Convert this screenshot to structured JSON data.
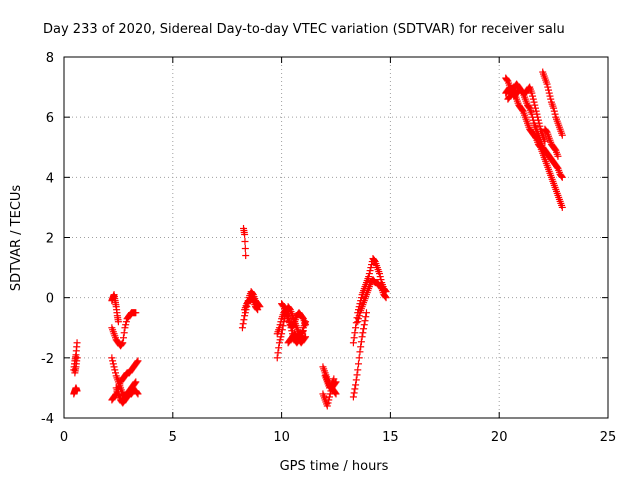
{
  "chart_data": {
    "type": "scatter",
    "title": "Day 233 of 2020, Sidereal Day-to-day VTEC variation (SDTVAR) for receiver salu",
    "xlabel": "GPS time / hours",
    "ylabel": "SDTVAR / TECUs",
    "xlim": [
      0,
      25
    ],
    "ylim": [
      -4,
      8
    ],
    "xticks": [
      0,
      5,
      10,
      15,
      20,
      25
    ],
    "yticks": [
      -4,
      -2,
      0,
      2,
      4,
      6,
      8
    ],
    "grid": true,
    "marker": "+",
    "color": "#ff0000",
    "series": [
      {
        "name": "SDTVAR",
        "segments": [
          {
            "x": [
              0.45,
              0.5,
              0.55,
              0.6
            ],
            "y": [
              -2.4,
              -2.1,
              -1.9,
              -1.5
            ]
          },
          {
            "x": [
              0.45,
              0.5,
              0.55,
              0.6
            ],
            "y": [
              -3.2,
              -3.1,
              -3.0,
              -3.1
            ]
          },
          {
            "x": [
              0.5,
              0.55,
              0.6
            ],
            "y": [
              -2.5,
              -2.3,
              -2.0
            ]
          },
          {
            "x": [
              2.2,
              2.3,
              2.4,
              2.5,
              2.6,
              2.7,
              2.8,
              2.9,
              3.0,
              3.1,
              3.2,
              3.3
            ],
            "y": [
              -1.0,
              -1.2,
              -1.4,
              -1.5,
              -1.6,
              -1.5,
              -1.0,
              -0.7,
              -0.6,
              -0.5,
              -0.5,
              -0.5
            ]
          },
          {
            "x": [
              2.2,
              2.25,
              2.3,
              2.35,
              2.4,
              2.45,
              2.5
            ],
            "y": [
              -0.1,
              0.0,
              0.1,
              -0.1,
              -0.3,
              -0.6,
              -0.8
            ]
          },
          {
            "x": [
              2.2,
              2.3,
              2.4,
              2.5,
              2.6,
              2.7,
              2.8,
              2.9,
              3.0,
              3.1,
              3.2,
              3.3
            ],
            "y": [
              -2.0,
              -2.3,
              -2.6,
              -2.8,
              -3.0,
              -3.2,
              -3.3,
              -3.2,
              -3.1,
              -3.0,
              -2.9,
              -2.8
            ]
          },
          {
            "x": [
              2.2,
              2.3,
              2.4,
              2.5,
              2.6,
              2.7,
              2.8,
              2.9,
              3.0,
              3.1,
              3.2,
              3.3,
              3.4
            ],
            "y": [
              -3.4,
              -3.3,
              -3.2,
              -3.0,
              -2.8,
              -2.7,
              -2.6,
              -2.5,
              -2.5,
              -2.4,
              -2.3,
              -2.2,
              -2.1
            ]
          },
          {
            "x": [
              2.4,
              2.5,
              2.6,
              2.7,
              2.8,
              2.9,
              3.0,
              3.1,
              3.2,
              3.3,
              3.4
            ],
            "y": [
              -3.0,
              -3.2,
              -3.4,
              -3.5,
              -3.4,
              -3.3,
              -3.2,
              -3.2,
              -3.1,
              -3.1,
              -3.2
            ]
          },
          {
            "x": [
              8.25,
              8.3,
              8.35
            ],
            "y": [
              2.3,
              2.1,
              1.4
            ]
          },
          {
            "x": [
              8.2,
              8.3,
              8.4,
              8.5,
              8.6,
              8.7,
              8.8,
              8.9,
              9.0
            ],
            "y": [
              -1.0,
              -0.6,
              -0.3,
              0.0,
              0.2,
              0.1,
              -0.1,
              -0.2,
              -0.3
            ]
          },
          {
            "x": [
              8.3,
              8.4,
              8.5,
              8.6,
              8.7,
              8.8,
              8.9
            ],
            "y": [
              -0.4,
              -0.2,
              -0.1,
              0.0,
              -0.1,
              -0.3,
              -0.4
            ]
          },
          {
            "x": [
              9.8,
              9.9,
              10.0,
              10.1,
              10.2,
              10.3,
              10.4,
              10.5,
              10.6,
              10.7,
              10.8,
              10.9,
              11.0,
              11.1
            ],
            "y": [
              -2.0,
              -1.5,
              -1.2,
              -0.8,
              -0.5,
              -0.3,
              -0.4,
              -0.6,
              -0.8,
              -1.0,
              -1.2,
              -1.3,
              -1.0,
              -0.8
            ]
          },
          {
            "x": [
              9.8,
              9.9,
              10.0,
              10.1,
              10.2,
              10.3,
              10.4,
              10.5,
              10.6,
              10.7,
              10.8,
              10.9,
              11.0
            ],
            "y": [
              -1.2,
              -1.0,
              -0.7,
              -0.5,
              -0.4,
              -0.6,
              -0.9,
              -1.2,
              -1.4,
              -1.5,
              -1.4,
              -1.2,
              -1.1
            ]
          },
          {
            "x": [
              10.0,
              10.1,
              10.2,
              10.3,
              10.4,
              10.5,
              10.6,
              10.7,
              10.8,
              10.9,
              11.0,
              11.1
            ],
            "y": [
              -0.2,
              -0.3,
              -0.5,
              -0.7,
              -0.9,
              -1.0,
              -0.8,
              -0.6,
              -0.5,
              -0.6,
              -0.7,
              -0.9
            ]
          },
          {
            "x": [
              10.3,
              10.4,
              10.5,
              10.6,
              10.7,
              10.8,
              10.9,
              11.0,
              11.1
            ],
            "y": [
              -1.5,
              -1.4,
              -1.3,
              -1.2,
              -1.3,
              -1.4,
              -1.5,
              -1.4,
              -1.3
            ]
          },
          {
            "x": [
              11.9,
              12.0,
              12.1,
              12.2,
              12.3,
              12.4,
              12.5
            ],
            "y": [
              -2.3,
              -2.5,
              -2.7,
              -2.9,
              -3.0,
              -2.9,
              -2.8
            ]
          },
          {
            "x": [
              11.9,
              12.0,
              12.1,
              12.2,
              12.3,
              12.4,
              12.5
            ],
            "y": [
              -3.2,
              -3.4,
              -3.6,
              -3.3,
              -3.0,
              -3.1,
              -3.2
            ]
          },
          {
            "x": [
              12.0,
              12.1,
              12.2,
              12.3,
              12.4
            ],
            "y": [
              -2.6,
              -2.8,
              -3.0,
              -2.9,
              -2.7
            ]
          },
          {
            "x": [
              13.3,
              13.4,
              13.5,
              13.6,
              13.7,
              13.8,
              13.9
            ],
            "y": [
              -3.3,
              -2.9,
              -2.4,
              -1.8,
              -1.3,
              -0.9,
              -0.5
            ]
          },
          {
            "x": [
              13.3,
              13.4,
              13.5,
              13.6,
              13.7,
              13.8,
              13.9,
              14.0,
              14.1,
              14.2,
              14.3,
              14.4,
              14.5,
              14.6,
              14.7,
              14.8
            ],
            "y": [
              -1.5,
              -1.0,
              -0.5,
              -0.2,
              0.1,
              0.3,
              0.5,
              0.7,
              1.0,
              1.3,
              1.2,
              1.0,
              0.8,
              0.5,
              0.3,
              0.2
            ]
          },
          {
            "x": [
              13.5,
              13.6,
              13.7,
              13.8,
              13.9,
              14.0,
              14.1,
              14.2,
              14.3,
              14.4,
              14.5,
              14.6,
              14.7,
              14.8
            ],
            "y": [
              -0.8,
              -0.5,
              -0.3,
              -0.1,
              0.1,
              0.3,
              0.5,
              0.6,
              0.5,
              0.5,
              0.4,
              0.3,
              0.1,
              0.0
            ]
          },
          {
            "x": [
              20.3,
              20.4,
              20.5,
              20.6,
              20.7,
              20.8,
              20.9,
              21.0,
              21.1,
              21.2,
              21.3,
              21.4,
              21.5,
              21.6,
              21.7,
              21.8,
              21.9,
              22.0,
              22.1,
              22.2,
              22.3,
              22.4,
              22.5,
              22.6,
              22.7,
              22.8,
              22.9
            ],
            "y": [
              7.3,
              7.2,
              7.0,
              6.9,
              6.8,
              6.6,
              6.4,
              6.3,
              6.2,
              6.0,
              5.8,
              5.6,
              5.5,
              5.4,
              5.3,
              5.1,
              5.0,
              4.8,
              4.6,
              4.4,
              4.2,
              4.0,
              3.8,
              3.6,
              3.4,
              3.2,
              3.0
            ]
          },
          {
            "x": [
              20.3,
              20.4,
              20.5,
              20.6,
              20.7,
              20.8,
              20.9,
              21.0,
              21.1,
              21.2,
              21.3,
              21.4,
              21.5,
              21.6,
              21.7,
              21.8,
              21.9,
              22.0,
              22.1,
              22.2,
              22.3,
              22.4,
              22.5,
              22.6,
              22.7,
              22.8,
              22.9
            ],
            "y": [
              6.8,
              6.9,
              7.0,
              6.8,
              6.7,
              6.8,
              6.9,
              6.9,
              6.8,
              6.6,
              6.4,
              6.3,
              6.1,
              5.8,
              5.6,
              5.4,
              5.2,
              5.0,
              4.9,
              4.8,
              4.7,
              4.6,
              4.5,
              4.4,
              4.3,
              4.1,
              4.0
            ]
          },
          {
            "x": [
              20.4,
              20.5,
              20.6,
              20.7,
              20.8,
              20.9,
              21.0,
              21.1,
              21.2,
              21.3,
              21.4,
              21.5,
              21.6,
              21.7,
              21.8,
              21.9,
              22.0,
              22.1
            ],
            "y": [
              6.6,
              6.7,
              6.9,
              7.0,
              7.1,
              7.0,
              6.9,
              6.8,
              6.8,
              6.9,
              7.0,
              6.8,
              6.5,
              6.2,
              5.9,
              5.6,
              5.4,
              5.2
            ]
          },
          {
            "x": [
              22.0,
              22.1,
              22.2,
              22.3,
              22.4,
              22.5,
              22.6,
              22.7,
              22.8,
              22.9
            ],
            "y": [
              7.5,
              7.3,
              7.1,
              6.8,
              6.5,
              6.3,
              6.0,
              5.8,
              5.6,
              5.4
            ]
          },
          {
            "x": [
              22.1,
              22.2,
              22.3,
              22.4,
              22.5,
              22.6,
              22.7
            ],
            "y": [
              5.6,
              5.5,
              5.3,
              5.1,
              5.0,
              4.9,
              4.7
            ]
          }
        ]
      }
    ]
  }
}
